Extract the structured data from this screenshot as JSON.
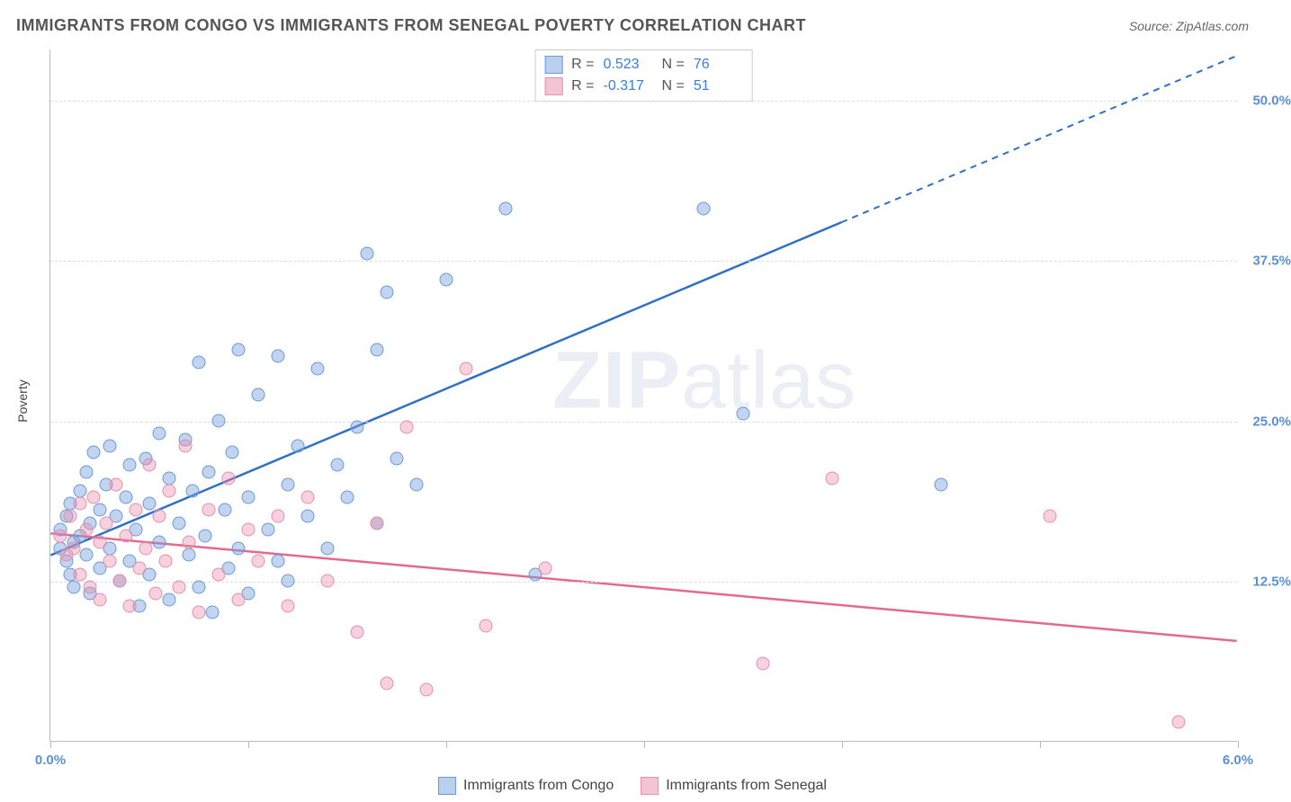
{
  "header": {
    "title": "IMMIGRANTS FROM CONGO VS IMMIGRANTS FROM SENEGAL POVERTY CORRELATION CHART",
    "source_prefix": "Source: ",
    "source_name": "ZipAtlas.com"
  },
  "watermark": {
    "part1": "ZIP",
    "part2": "atlas"
  },
  "chart": {
    "type": "scatter",
    "background_color": "#ffffff",
    "grid_color": "#dddddd",
    "axis_color": "#bbbbbb",
    "y_axis_title": "Poverty",
    "xlim": [
      0.0,
      6.0
    ],
    "ylim": [
      0.0,
      54.0
    ],
    "x_ticks": [
      0.0,
      1.0,
      2.0,
      3.0,
      4.0,
      5.0,
      6.0
    ],
    "x_tick_labels": {
      "0": "0.0%",
      "6": "6.0%"
    },
    "y_gridlines": [
      12.5,
      25.0,
      37.5,
      50.0
    ],
    "y_tick_labels": [
      "12.5%",
      "25.0%",
      "37.5%",
      "50.0%"
    ],
    "y_label_color": "#5b8fd6",
    "x_label_color": "#5b8fd6",
    "series": [
      {
        "name": "Immigrants from Congo",
        "fill_color": "rgba(120,160,220,0.45)",
        "stroke_color": "#6a99d8",
        "line_color": "#2f6fc4",
        "swatch_fill": "#b9d0ee",
        "R_label": "R =",
        "R_value": "0.523",
        "N_label": "N =",
        "N_value": "76",
        "stat_color": "#3b7dd8",
        "trend": {
          "x1": 0.0,
          "y1": 14.5,
          "x2_solid": 4.0,
          "y2_solid": 40.5,
          "x2_dash": 6.0,
          "y2_dash": 53.5
        },
        "points": [
          [
            0.05,
            15.0
          ],
          [
            0.05,
            16.5
          ],
          [
            0.08,
            14.0
          ],
          [
            0.08,
            17.5
          ],
          [
            0.1,
            13.0
          ],
          [
            0.1,
            18.5
          ],
          [
            0.12,
            15.5
          ],
          [
            0.12,
            12.0
          ],
          [
            0.15,
            19.5
          ],
          [
            0.15,
            16.0
          ],
          [
            0.18,
            14.5
          ],
          [
            0.18,
            21.0
          ],
          [
            0.2,
            17.0
          ],
          [
            0.2,
            11.5
          ],
          [
            0.22,
            22.5
          ],
          [
            0.25,
            18.0
          ],
          [
            0.25,
            13.5
          ],
          [
            0.28,
            20.0
          ],
          [
            0.3,
            15.0
          ],
          [
            0.3,
            23.0
          ],
          [
            0.33,
            17.5
          ],
          [
            0.35,
            12.5
          ],
          [
            0.38,
            19.0
          ],
          [
            0.4,
            21.5
          ],
          [
            0.4,
            14.0
          ],
          [
            0.43,
            16.5
          ],
          [
            0.45,
            10.5
          ],
          [
            0.48,
            22.0
          ],
          [
            0.5,
            18.5
          ],
          [
            0.5,
            13.0
          ],
          [
            0.55,
            24.0
          ],
          [
            0.55,
            15.5
          ],
          [
            0.6,
            20.5
          ],
          [
            0.6,
            11.0
          ],
          [
            0.65,
            17.0
          ],
          [
            0.68,
            23.5
          ],
          [
            0.7,
            14.5
          ],
          [
            0.72,
            19.5
          ],
          [
            0.75,
            29.5
          ],
          [
            0.75,
            12.0
          ],
          [
            0.78,
            16.0
          ],
          [
            0.8,
            21.0
          ],
          [
            0.82,
            10.0
          ],
          [
            0.85,
            25.0
          ],
          [
            0.88,
            18.0
          ],
          [
            0.9,
            13.5
          ],
          [
            0.92,
            22.5
          ],
          [
            0.95,
            15.0
          ],
          [
            0.95,
            30.5
          ],
          [
            1.0,
            19.0
          ],
          [
            1.0,
            11.5
          ],
          [
            1.05,
            27.0
          ],
          [
            1.1,
            16.5
          ],
          [
            1.15,
            30.0
          ],
          [
            1.15,
            14.0
          ],
          [
            1.2,
            20.0
          ],
          [
            1.2,
            12.5
          ],
          [
            1.25,
            23.0
          ],
          [
            1.3,
            17.5
          ],
          [
            1.35,
            29.0
          ],
          [
            1.4,
            15.0
          ],
          [
            1.45,
            21.5
          ],
          [
            1.5,
            19.0
          ],
          [
            1.55,
            24.5
          ],
          [
            1.6,
            38.0
          ],
          [
            1.65,
            30.5
          ],
          [
            1.65,
            17.0
          ],
          [
            1.7,
            35.0
          ],
          [
            1.75,
            22.0
          ],
          [
            1.85,
            20.0
          ],
          [
            2.0,
            36.0
          ],
          [
            2.3,
            41.5
          ],
          [
            2.45,
            13.0
          ],
          [
            3.3,
            41.5
          ],
          [
            3.5,
            25.5
          ],
          [
            4.5,
            20.0
          ]
        ]
      },
      {
        "name": "Immigrants from Senegal",
        "fill_color": "rgba(235,140,170,0.40)",
        "stroke_color": "#e48fab",
        "line_color": "#e36a8e",
        "swatch_fill": "#f3c4d3",
        "R_label": "R =",
        "R_value": "-0.317",
        "N_label": "N =",
        "N_value": "51",
        "stat_color": "#3b7dd8",
        "trend": {
          "x1": 0.0,
          "y1": 16.2,
          "x2_solid": 6.0,
          "y2_solid": 7.8,
          "x2_dash": 6.0,
          "y2_dash": 7.8
        },
        "points": [
          [
            0.05,
            16.0
          ],
          [
            0.08,
            14.5
          ],
          [
            0.1,
            17.5
          ],
          [
            0.12,
            15.0
          ],
          [
            0.15,
            13.0
          ],
          [
            0.15,
            18.5
          ],
          [
            0.18,
            16.5
          ],
          [
            0.2,
            12.0
          ],
          [
            0.22,
            19.0
          ],
          [
            0.25,
            15.5
          ],
          [
            0.25,
            11.0
          ],
          [
            0.28,
            17.0
          ],
          [
            0.3,
            14.0
          ],
          [
            0.33,
            20.0
          ],
          [
            0.35,
            12.5
          ],
          [
            0.38,
            16.0
          ],
          [
            0.4,
            10.5
          ],
          [
            0.43,
            18.0
          ],
          [
            0.45,
            13.5
          ],
          [
            0.48,
            15.0
          ],
          [
            0.5,
            21.5
          ],
          [
            0.53,
            11.5
          ],
          [
            0.55,
            17.5
          ],
          [
            0.58,
            14.0
          ],
          [
            0.6,
            19.5
          ],
          [
            0.65,
            12.0
          ],
          [
            0.68,
            23.0
          ],
          [
            0.7,
            15.5
          ],
          [
            0.75,
            10.0
          ],
          [
            0.8,
            18.0
          ],
          [
            0.85,
            13.0
          ],
          [
            0.9,
            20.5
          ],
          [
            0.95,
            11.0
          ],
          [
            1.0,
            16.5
          ],
          [
            1.05,
            14.0
          ],
          [
            1.15,
            17.5
          ],
          [
            1.2,
            10.5
          ],
          [
            1.3,
            19.0
          ],
          [
            1.4,
            12.5
          ],
          [
            1.55,
            8.5
          ],
          [
            1.65,
            17.0
          ],
          [
            1.7,
            4.5
          ],
          [
            1.8,
            24.5
          ],
          [
            1.9,
            4.0
          ],
          [
            2.1,
            29.0
          ],
          [
            2.2,
            9.0
          ],
          [
            2.5,
            13.5
          ],
          [
            3.6,
            6.0
          ],
          [
            3.95,
            20.5
          ],
          [
            5.05,
            17.5
          ],
          [
            5.7,
            1.5
          ]
        ]
      }
    ],
    "bottom_legend": [
      {
        "swatch_fill": "#b9d0ee",
        "swatch_stroke": "#6a99d8",
        "label": "Immigrants from Congo"
      },
      {
        "swatch_fill": "#f3c4d3",
        "swatch_stroke": "#e48fab",
        "label": "Immigrants from Senegal"
      }
    ]
  }
}
